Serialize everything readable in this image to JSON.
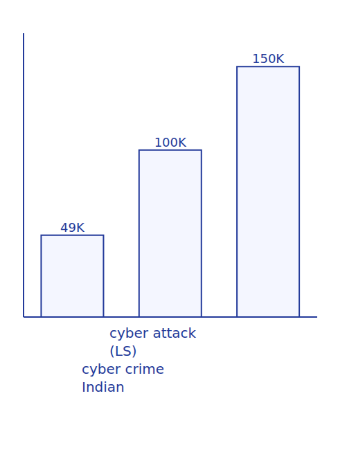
{
  "chart_data": {
    "type": "bar",
    "categories": [
      null,
      null,
      null
    ],
    "values": [
      49000,
      100000,
      150000
    ],
    "value_labels": [
      "49K",
      "100K",
      "150K"
    ],
    "data_labels": true,
    "x_label": "cyber attack",
    "annotations": [
      "(LS)",
      "cyber crime",
      "Indian"
    ],
    "color": "#233a9a",
    "ylim": [
      0,
      170000
    ],
    "grid": false,
    "tick_labels": false
  }
}
